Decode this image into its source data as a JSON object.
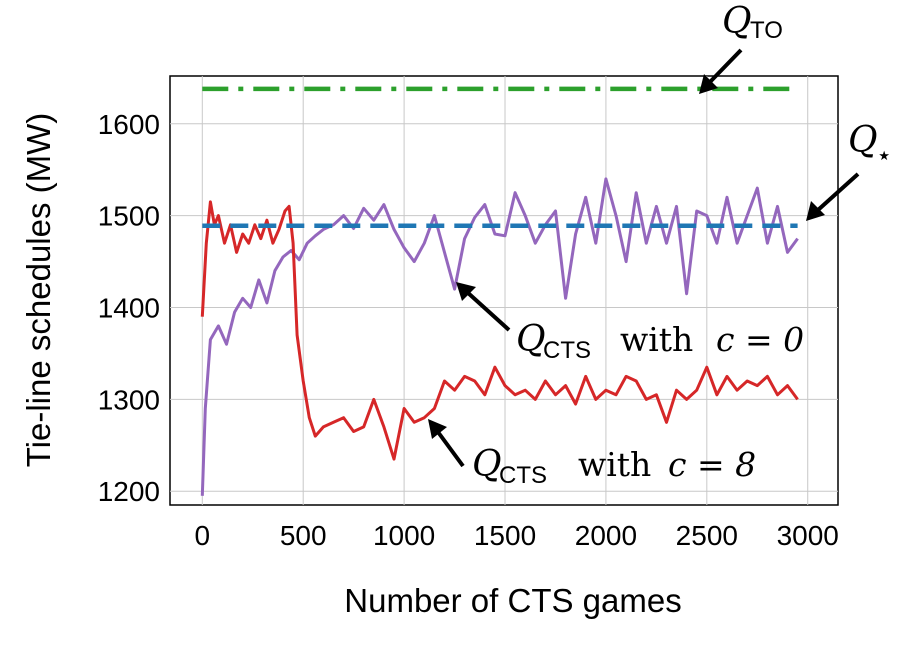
{
  "chart_data": {
    "type": "line",
    "xlabel": "Number of CTS games",
    "ylabel": "Tie-line schedules (MW)",
    "xlim": [
      -160,
      3150
    ],
    "ylim": [
      1185,
      1652
    ],
    "x_ticks": [
      0,
      500,
      1000,
      1500,
      2000,
      2500,
      3000
    ],
    "y_ticks": [
      1200,
      1300,
      1400,
      1500,
      1600
    ],
    "grid": true,
    "colors": {
      "tto": "#2ca02c",
      "star": "#1f77b4",
      "c0": "#9467bd",
      "c8": "#d62728"
    },
    "series": [
      {
        "key": "tto",
        "style": "dashdot",
        "x": [
          0,
          2950
        ],
        "values": [
          1638,
          1638
        ]
      },
      {
        "key": "star",
        "style": "dashed",
        "x": [
          0,
          2950
        ],
        "values": [
          1489,
          1489
        ]
      },
      {
        "key": "c0",
        "style": "solid",
        "x": [
          0,
          15,
          40,
          80,
          120,
          160,
          200,
          240,
          280,
          320,
          360,
          400,
          440,
          480,
          520,
          560,
          600,
          650,
          700,
          750,
          800,
          850,
          900,
          950,
          1000,
          1050,
          1100,
          1150,
          1200,
          1250,
          1300,
          1350,
          1400,
          1450,
          1500,
          1550,
          1600,
          1650,
          1700,
          1750,
          1800,
          1850,
          1900,
          1950,
          2000,
          2050,
          2100,
          2150,
          2200,
          2250,
          2300,
          2350,
          2400,
          2450,
          2500,
          2550,
          2600,
          2650,
          2700,
          2750,
          2800,
          2850,
          2900,
          2950
        ],
        "values": [
          1195,
          1290,
          1365,
          1380,
          1360,
          1395,
          1410,
          1400,
          1430,
          1405,
          1440,
          1455,
          1462,
          1452,
          1470,
          1478,
          1485,
          1490,
          1500,
          1486,
          1508,
          1495,
          1512,
          1485,
          1465,
          1450,
          1470,
          1500,
          1460,
          1420,
          1475,
          1498,
          1512,
          1480,
          1478,
          1525,
          1500,
          1470,
          1490,
          1505,
          1410,
          1480,
          1520,
          1470,
          1540,
          1500,
          1450,
          1525,
          1470,
          1510,
          1470,
          1510,
          1415,
          1505,
          1500,
          1470,
          1520,
          1470,
          1500,
          1530,
          1470,
          1510,
          1460,
          1475
        ]
      },
      {
        "key": "c8",
        "style": "solid",
        "x": [
          0,
          20,
          40,
          60,
          80,
          110,
          140,
          170,
          200,
          230,
          260,
          290,
          320,
          350,
          380,
          410,
          430,
          450,
          470,
          500,
          530,
          560,
          600,
          650,
          700,
          750,
          800,
          850,
          900,
          950,
          1000,
          1050,
          1100,
          1150,
          1200,
          1250,
          1300,
          1350,
          1400,
          1450,
          1500,
          1550,
          1600,
          1650,
          1700,
          1750,
          1800,
          1850,
          1900,
          1950,
          2000,
          2050,
          2100,
          2150,
          2200,
          2250,
          2300,
          2350,
          2400,
          2450,
          2500,
          2550,
          2600,
          2650,
          2700,
          2750,
          2800,
          2850,
          2900,
          2950
        ],
        "values": [
          1390,
          1470,
          1515,
          1490,
          1500,
          1470,
          1490,
          1460,
          1480,
          1470,
          1490,
          1475,
          1495,
          1470,
          1485,
          1505,
          1510,
          1470,
          1370,
          1320,
          1280,
          1260,
          1270,
          1275,
          1280,
          1265,
          1270,
          1300,
          1270,
          1235,
          1290,
          1275,
          1280,
          1290,
          1320,
          1310,
          1325,
          1320,
          1305,
          1335,
          1315,
          1305,
          1310,
          1300,
          1320,
          1305,
          1315,
          1295,
          1325,
          1300,
          1310,
          1305,
          1325,
          1320,
          1300,
          1305,
          1275,
          1310,
          1300,
          1310,
          1335,
          1305,
          1325,
          1310,
          1320,
          1315,
          1325,
          1305,
          1315,
          1300
        ]
      }
    ],
    "annotations": {
      "tto": {
        "sub": "TO"
      },
      "star": {
        "sub": "⋆"
      },
      "c0": {
        "sub": "CTS",
        "text": "with",
        "eq": "c = 0"
      },
      "c8": {
        "sub": "CTS",
        "text": "with",
        "eq": "c = 8"
      }
    }
  }
}
